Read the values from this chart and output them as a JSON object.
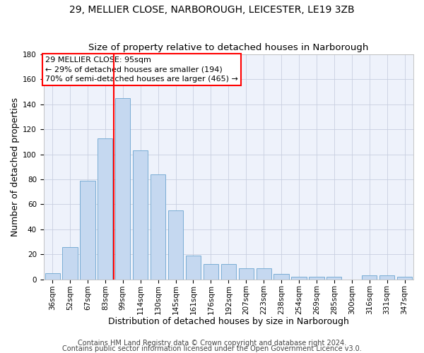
{
  "title1": "29, MELLIER CLOSE, NARBOROUGH, LEICESTER, LE19 3ZB",
  "title2": "Size of property relative to detached houses in Narborough",
  "xlabel": "Distribution of detached houses by size in Narborough",
  "ylabel": "Number of detached properties",
  "categories": [
    "36sqm",
    "52sqm",
    "67sqm",
    "83sqm",
    "99sqm",
    "114sqm",
    "130sqm",
    "145sqm",
    "161sqm",
    "176sqm",
    "192sqm",
    "207sqm",
    "223sqm",
    "238sqm",
    "254sqm",
    "269sqm",
    "285sqm",
    "300sqm",
    "316sqm",
    "331sqm",
    "347sqm"
  ],
  "values": [
    5,
    26,
    79,
    113,
    145,
    103,
    84,
    55,
    19,
    12,
    12,
    9,
    9,
    4,
    2,
    2,
    2,
    0,
    3,
    3,
    2
  ],
  "bar_color": "#c5d8f0",
  "bar_edge_color": "#7aadd4",
  "vline_x_index": 4,
  "vline_color": "red",
  "annotation_text": "29 MELLIER CLOSE: 95sqm\n← 29% of detached houses are smaller (194)\n70% of semi-detached houses are larger (465) →",
  "annotation_box_color": "white",
  "annotation_box_edge_color": "red",
  "ylim": [
    0,
    180
  ],
  "yticks": [
    0,
    20,
    40,
    60,
    80,
    100,
    120,
    140,
    160,
    180
  ],
  "footer1": "Contains HM Land Registry data © Crown copyright and database right 2024.",
  "footer2": "Contains public sector information licensed under the Open Government Licence v3.0.",
  "bg_color": "#eef2fb",
  "grid_color": "#c8cfe0",
  "title1_fontsize": 10,
  "title2_fontsize": 9.5,
  "xlabel_fontsize": 9,
  "ylabel_fontsize": 9,
  "tick_fontsize": 7.5,
  "annot_fontsize": 8,
  "footer_fontsize": 7
}
